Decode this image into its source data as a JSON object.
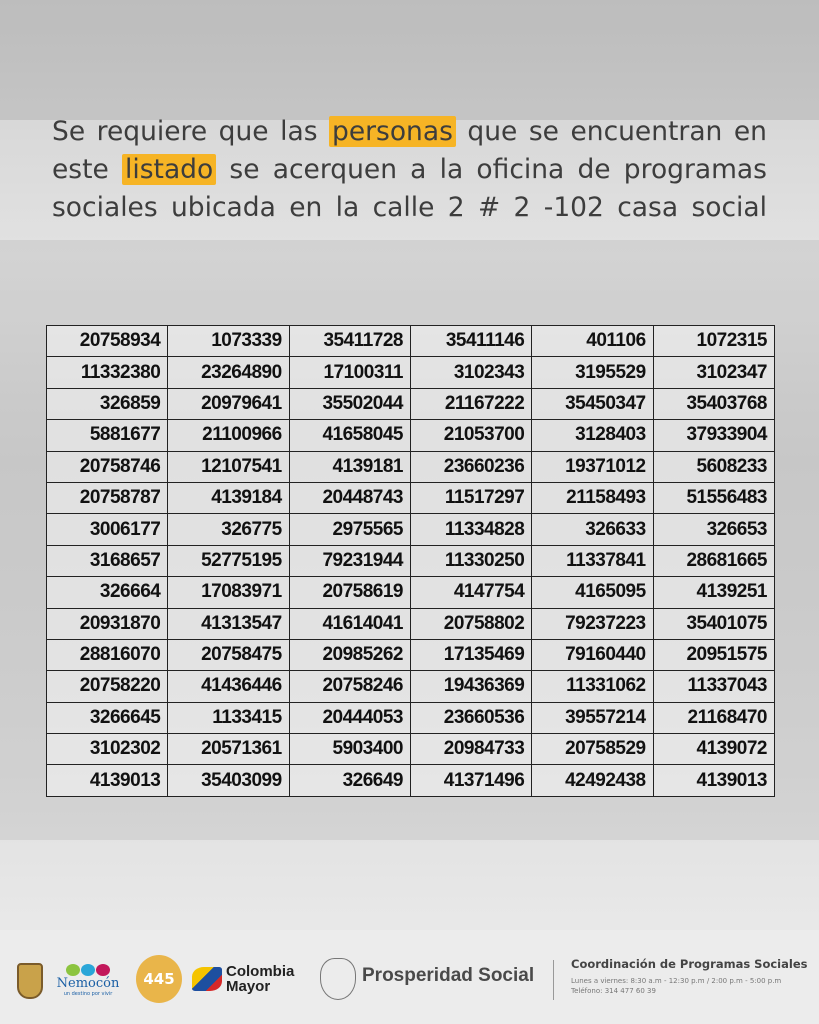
{
  "message": {
    "part1": "Se requiere que las",
    "highlight1": "personas",
    "part2": "que se encuentran en este",
    "highlight2": "listado",
    "part3": "se acerquen a la oficina de programas sociales ubicada en la calle 2 # 2 -102 casa social"
  },
  "highlight_color": "#f6b425",
  "table": {
    "rows": [
      [
        "20758934",
        "1073339",
        "35411728",
        "35411146",
        "401106",
        "1072315"
      ],
      [
        "11332380",
        "23264890",
        "17100311",
        "3102343",
        "3195529",
        "3102347"
      ],
      [
        "326859",
        "20979641",
        "35502044",
        "21167222",
        "35450347",
        "35403768"
      ],
      [
        "5881677",
        "21100966",
        "41658045",
        "21053700",
        "3128403",
        "37933904"
      ],
      [
        "20758746",
        "12107541",
        "4139181",
        "23660236",
        "19371012",
        "5608233"
      ],
      [
        "20758787",
        "4139184",
        "20448743",
        "11517297",
        "21158493",
        "51556483"
      ],
      [
        "3006177",
        "326775",
        "2975565",
        "11334828",
        "326633",
        "326653"
      ],
      [
        "3168657",
        "52775195",
        "79231944",
        "11330250",
        "11337841",
        "28681665"
      ],
      [
        "326664",
        "17083971",
        "20758619",
        "4147754",
        "4165095",
        "4139251"
      ],
      [
        "20931870",
        "41313547",
        "41614041",
        "20758802",
        "79237223",
        "35401075"
      ],
      [
        "28816070",
        "20758475",
        "20985262",
        "17135469",
        "79160440",
        "20951575"
      ],
      [
        "20758220",
        "41436446",
        "20758246",
        "19436369",
        "11331062",
        "11337043"
      ],
      [
        "3266645",
        "1133415",
        "20444053",
        "23660536",
        "39557214",
        "21168470"
      ],
      [
        "3102302",
        "20571361",
        "5903400",
        "20984733",
        "20758529",
        "4139072"
      ],
      [
        "4139013",
        "35403099",
        "326649",
        "41371496",
        "42492438",
        "4139013"
      ]
    ]
  },
  "footer": {
    "nemocon": "Nemocón",
    "nemocon_tag": "un destino por vivir",
    "anniv": "445",
    "anniv_text": "NEMOCÓN AÑOS",
    "colombia_mayor": [
      "Colombia",
      "Mayor"
    ],
    "prosperidad": "Prosperidad Social",
    "title": "Coordinación de Programas Sociales",
    "hours": "Lunes a viernes: 8:30 a.m - 12:30 p.m / 2:00 p.m - 5:00 p.m",
    "phone": "Teléfono: 314 477 60 39"
  }
}
